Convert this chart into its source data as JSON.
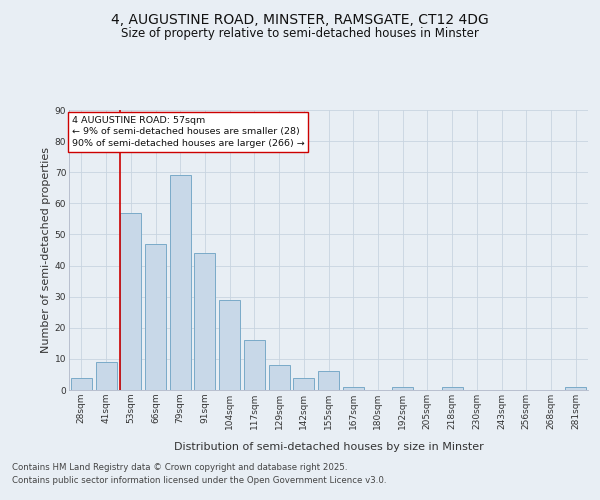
{
  "title1": "4, AUGUSTINE ROAD, MINSTER, RAMSGATE, CT12 4DG",
  "title2": "Size of property relative to semi-detached houses in Minster",
  "xlabel": "Distribution of semi-detached houses by size in Minster",
  "ylabel": "Number of semi-detached properties",
  "categories": [
    "28sqm",
    "41sqm",
    "53sqm",
    "66sqm",
    "79sqm",
    "91sqm",
    "104sqm",
    "117sqm",
    "129sqm",
    "142sqm",
    "155sqm",
    "167sqm",
    "180sqm",
    "192sqm",
    "205sqm",
    "218sqm",
    "230sqm",
    "243sqm",
    "256sqm",
    "268sqm",
    "281sqm"
  ],
  "values": [
    4,
    9,
    57,
    47,
    69,
    44,
    29,
    16,
    8,
    4,
    6,
    1,
    0,
    1,
    0,
    1,
    0,
    0,
    0,
    0,
    1
  ],
  "bar_color": "#c8d8e8",
  "bar_edge_color": "#7aaac8",
  "vline_bar_index": 2,
  "vline_color": "#cc0000",
  "annotation_text": "4 AUGUSTINE ROAD: 57sqm\n← 9% of semi-detached houses are smaller (28)\n90% of semi-detached houses are larger (266) →",
  "annotation_box_color": "#ffffff",
  "annotation_box_edge": "#cc0000",
  "ylim": [
    0,
    90
  ],
  "yticks": [
    0,
    10,
    20,
    30,
    40,
    50,
    60,
    70,
    80,
    90
  ],
  "background_color": "#e8eef4",
  "grid_color": "#c8d4e0",
  "footer1": "Contains HM Land Registry data © Crown copyright and database right 2025.",
  "footer2": "Contains public sector information licensed under the Open Government Licence v3.0.",
  "title_fontsize": 10,
  "subtitle_fontsize": 8.5,
  "axis_label_fontsize": 8,
  "tick_fontsize": 6.5,
  "annotation_fontsize": 6.8,
  "footer_fontsize": 6.2
}
